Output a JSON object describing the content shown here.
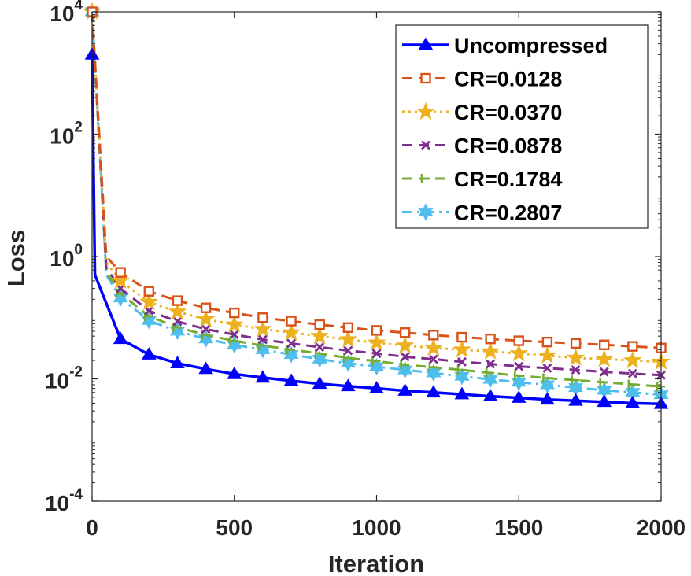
{
  "chart_data": {
    "type": "line",
    "title": "",
    "xlabel": "Iteration",
    "ylabel": "Loss",
    "xlim": [
      0,
      2000
    ],
    "ylim": [
      0.0001,
      10000
    ],
    "yscale": "log",
    "x_ticks": [
      0,
      500,
      1000,
      1500,
      2000
    ],
    "x_tick_labels": [
      "0",
      "500",
      "1000",
      "1500",
      "2000"
    ],
    "y_ticks": [
      0.0001,
      0.01,
      1,
      100,
      10000
    ],
    "y_tick_labels": [
      {
        "base": "10",
        "exp": "-4"
      },
      {
        "base": "10",
        "exp": "-2"
      },
      {
        "base": "10",
        "exp": "0"
      },
      {
        "base": "10",
        "exp": "2"
      },
      {
        "base": "10",
        "exp": "4"
      }
    ],
    "legend_position": "top-right",
    "series": [
      {
        "name": "Uncompressed",
        "color": "#0000ff",
        "style": "solid",
        "marker": "triangle",
        "x": [
          0,
          10,
          100,
          200,
          300,
          400,
          500,
          600,
          700,
          800,
          900,
          1000,
          1100,
          1200,
          1300,
          1400,
          1500,
          1600,
          1700,
          1800,
          1900,
          2000
        ],
        "y": [
          2000,
          0.5,
          0.045,
          0.025,
          0.018,
          0.0145,
          0.012,
          0.0105,
          0.0093,
          0.0083,
          0.0076,
          0.007,
          0.0064,
          0.006,
          0.0056,
          0.0052,
          0.0049,
          0.0046,
          0.0044,
          0.0042,
          0.004,
          0.0039
        ]
      },
      {
        "name": "CR=0.0128",
        "color": "#d95319",
        "style": "dashed",
        "marker": "square",
        "x": [
          0,
          50,
          100,
          200,
          300,
          400,
          500,
          600,
          700,
          800,
          900,
          1000,
          1100,
          1200,
          1300,
          1400,
          1500,
          1600,
          1700,
          1800,
          1900,
          2000
        ],
        "y": [
          10000,
          1.0,
          0.55,
          0.27,
          0.19,
          0.145,
          0.12,
          0.1,
          0.088,
          0.077,
          0.069,
          0.062,
          0.057,
          0.052,
          0.048,
          0.045,
          0.042,
          0.04,
          0.038,
          0.036,
          0.034,
          0.032
        ]
      },
      {
        "name": "CR=0.0370",
        "color": "#edb120",
        "style": "dotted",
        "marker": "star",
        "x": [
          0,
          50,
          100,
          200,
          300,
          400,
          500,
          600,
          700,
          800,
          900,
          1000,
          1100,
          1200,
          1300,
          1400,
          1500,
          1600,
          1700,
          1800,
          1900,
          2000
        ],
        "y": [
          10000,
          0.8,
          0.4,
          0.18,
          0.125,
          0.094,
          0.077,
          0.065,
          0.057,
          0.05,
          0.044,
          0.039,
          0.035,
          0.032,
          0.03,
          0.028,
          0.026,
          0.024,
          0.022,
          0.021,
          0.02,
          0.019
        ]
      },
      {
        "name": "CR=0.0878",
        "color": "#7e2f8e",
        "style": "dashed",
        "marker": "x",
        "x": [
          0,
          50,
          100,
          200,
          300,
          400,
          500,
          600,
          700,
          800,
          900,
          1000,
          1100,
          1200,
          1300,
          1400,
          1500,
          1600,
          1700,
          1800,
          1900,
          2000
        ],
        "y": [
          10000,
          0.65,
          0.3,
          0.13,
          0.087,
          0.065,
          0.053,
          0.044,
          0.038,
          0.033,
          0.029,
          0.026,
          0.023,
          0.021,
          0.019,
          0.0175,
          0.016,
          0.015,
          0.014,
          0.013,
          0.0122,
          0.0115
        ]
      },
      {
        "name": "CR=0.1784",
        "color": "#77ac30",
        "style": "dashed",
        "marker": "tick",
        "x": [
          0,
          50,
          100,
          200,
          300,
          400,
          500,
          600,
          700,
          800,
          900,
          1000,
          1100,
          1200,
          1300,
          1400,
          1500,
          1600,
          1700,
          1800,
          1900,
          2000
        ],
        "y": [
          10000,
          0.55,
          0.25,
          0.105,
          0.07,
          0.052,
          0.042,
          0.035,
          0.03,
          0.026,
          0.022,
          0.0195,
          0.017,
          0.0155,
          0.014,
          0.0125,
          0.0113,
          0.0103,
          0.0095,
          0.0088,
          0.0081,
          0.0075
        ]
      },
      {
        "name": "CR=0.2807",
        "color": "#4dbeee",
        "style": "dashdot",
        "marker": "hexagram",
        "x": [
          0,
          50,
          100,
          200,
          300,
          400,
          500,
          600,
          700,
          800,
          900,
          1000,
          1100,
          1200,
          1300,
          1400,
          1500,
          1600,
          1700,
          1800,
          1900,
          2000
        ],
        "y": [
          10000,
          0.5,
          0.21,
          0.09,
          0.06,
          0.045,
          0.036,
          0.03,
          0.025,
          0.021,
          0.018,
          0.0158,
          0.014,
          0.0125,
          0.011,
          0.0098,
          0.0088,
          0.008,
          0.0072,
          0.0065,
          0.006,
          0.0055
        ]
      }
    ]
  }
}
